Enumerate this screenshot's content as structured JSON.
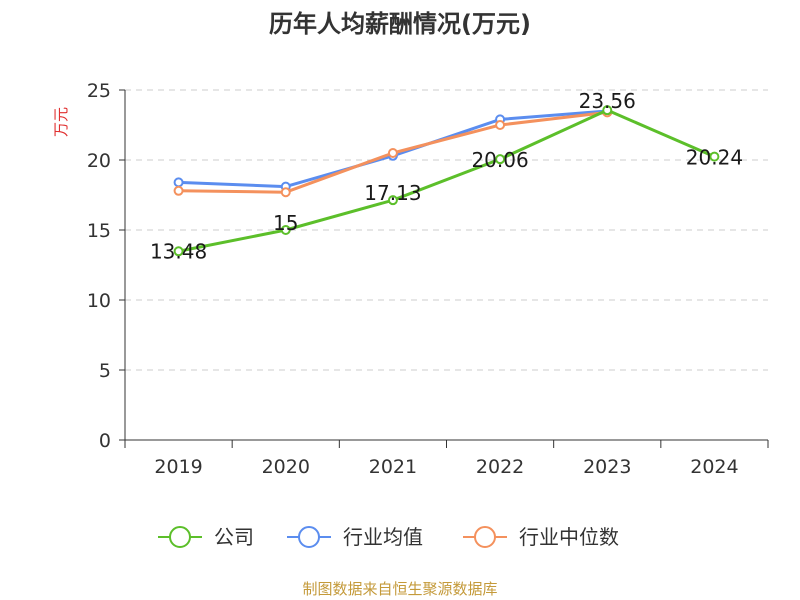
{
  "chart_data": {
    "type": "line",
    "title": "历年人均薪酬情况(万元)",
    "ylabel": "万元",
    "categories": [
      "2019",
      "2020",
      "2021",
      "2022",
      "2023",
      "2024"
    ],
    "ylim": [
      0,
      25
    ],
    "yticks": [
      "0",
      "5",
      "10",
      "15",
      "20",
      "25"
    ],
    "grid": true,
    "legend_position": "bottom",
    "series": [
      {
        "name": "公司",
        "color": "#5cbf2a",
        "values": [
          13.48,
          15,
          17.13,
          20.06,
          23.56,
          20.24
        ],
        "labels": [
          "13.48",
          "15",
          "17.13",
          "20.06",
          "23.56",
          "20.24"
        ]
      },
      {
        "name": "行业均值",
        "color": "#5b8def",
        "values": [
          18.4,
          18.1,
          20.3,
          22.9,
          23.5,
          null
        ]
      },
      {
        "name": "行业中位数",
        "color": "#f4915d",
        "values": [
          17.8,
          17.7,
          20.5,
          22.5,
          23.4,
          null
        ]
      }
    ],
    "source": "制图数据来自恒生聚源数据库",
    "source_color": "#c49a3a",
    "ylabel_color": "#e03030"
  }
}
